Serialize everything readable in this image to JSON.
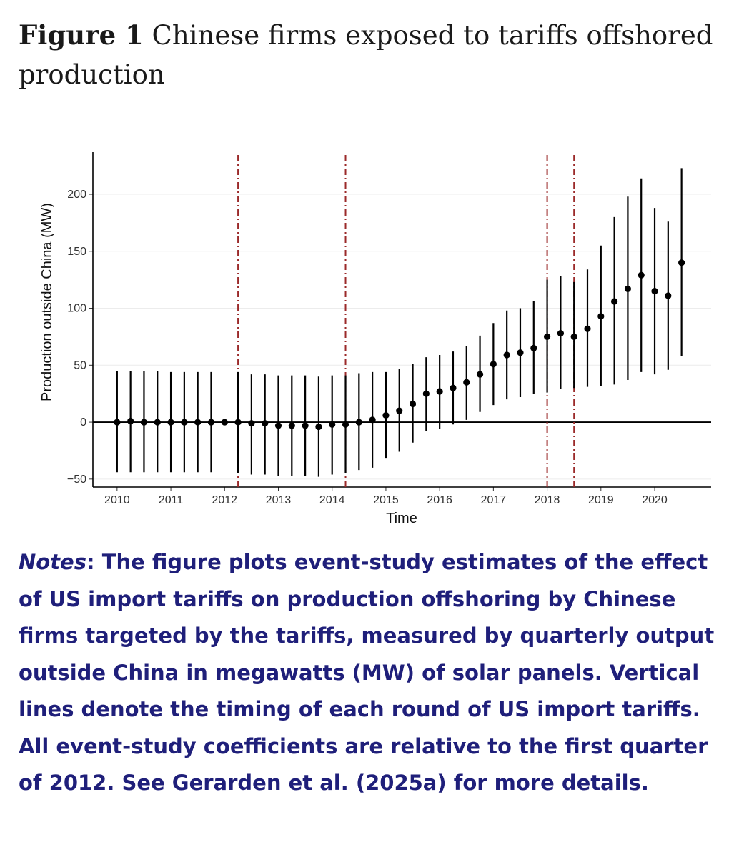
{
  "title": {
    "figure_label": "Figure 1",
    "text": "Chinese firms exposed to tariffs offshored production"
  },
  "notes": {
    "label": "Notes",
    "text": ": The figure plots event-study estimates of the effect of US import tariffs on production offshoring by Chinese firms targeted by the tariffs, measured by quarterly output outside China in megawatts (MW) of solar panels. Vertical lines denote the timing of each round of US import tariffs. All event-study coefficients are relative to the first quarter of 2012. See Gerarden et al. (2025a) for more details."
  },
  "chart_data": {
    "type": "scatter",
    "title": "",
    "xlabel": "Time",
    "ylabel": "Production outside China (MW)",
    "xlim": [
      2009.55,
      2021.05
    ],
    "ylim": [
      -57,
      237
    ],
    "x_ticks": [
      2010,
      2011,
      2012,
      2013,
      2014,
      2015,
      2016,
      2017,
      2018,
      2019,
      2020
    ],
    "x_tick_labels": [
      "2010",
      "2011",
      "2012",
      "2013",
      "2014",
      "2015",
      "2016",
      "2017",
      "2018",
      "2019",
      "2020"
    ],
    "y_ticks": [
      -50,
      0,
      50,
      100,
      150,
      200
    ],
    "y_tick_labels": [
      "−50",
      "0",
      "50",
      "100",
      "150",
      "200"
    ],
    "reference_line_y": 0,
    "event_lines_x": [
      2012.25,
      2014.25,
      2018.0,
      2018.5
    ],
    "grid": true,
    "series": [
      {
        "name": "Event-study estimate with confidence interval",
        "points": [
          {
            "x": 2010.0,
            "y": 0,
            "lo": -44,
            "hi": 45
          },
          {
            "x": 2010.25,
            "y": 1,
            "lo": -44,
            "hi": 45
          },
          {
            "x": 2010.5,
            "y": 0,
            "lo": -44,
            "hi": 45
          },
          {
            "x": 2010.75,
            "y": 0,
            "lo": -44,
            "hi": 45
          },
          {
            "x": 2011.0,
            "y": 0,
            "lo": -44,
            "hi": 44
          },
          {
            "x": 2011.25,
            "y": 0,
            "lo": -44,
            "hi": 44
          },
          {
            "x": 2011.5,
            "y": 0,
            "lo": -44,
            "hi": 44
          },
          {
            "x": 2011.75,
            "y": 0,
            "lo": -44,
            "hi": 44
          },
          {
            "x": 2012.0,
            "y": 0,
            "lo": 0,
            "hi": 0
          },
          {
            "x": 2012.25,
            "y": 0,
            "lo": -45,
            "hi": 44
          },
          {
            "x": 2012.5,
            "y": -1,
            "lo": -46,
            "hi": 42
          },
          {
            "x": 2012.75,
            "y": -1,
            "lo": -46,
            "hi": 42
          },
          {
            "x": 2013.0,
            "y": -3,
            "lo": -47,
            "hi": 41
          },
          {
            "x": 2013.25,
            "y": -3,
            "lo": -47,
            "hi": 41
          },
          {
            "x": 2013.5,
            "y": -3,
            "lo": -47,
            "hi": 41
          },
          {
            "x": 2013.75,
            "y": -4,
            "lo": -48,
            "hi": 40
          },
          {
            "x": 2014.0,
            "y": -2,
            "lo": -46,
            "hi": 41
          },
          {
            "x": 2014.25,
            "y": -2,
            "lo": -45,
            "hi": 41
          },
          {
            "x": 2014.5,
            "y": 0,
            "lo": -42,
            "hi": 43
          },
          {
            "x": 2014.75,
            "y": 2,
            "lo": -40,
            "hi": 44
          },
          {
            "x": 2015.0,
            "y": 6,
            "lo": -32,
            "hi": 44
          },
          {
            "x": 2015.25,
            "y": 10,
            "lo": -26,
            "hi": 47
          },
          {
            "x": 2015.5,
            "y": 16,
            "lo": -18,
            "hi": 51
          },
          {
            "x": 2015.75,
            "y": 25,
            "lo": -8,
            "hi": 57
          },
          {
            "x": 2016.0,
            "y": 27,
            "lo": -6,
            "hi": 59
          },
          {
            "x": 2016.25,
            "y": 30,
            "lo": -2,
            "hi": 62
          },
          {
            "x": 2016.5,
            "y": 35,
            "lo": 2,
            "hi": 67
          },
          {
            "x": 2016.75,
            "y": 42,
            "lo": 9,
            "hi": 76
          },
          {
            "x": 2017.0,
            "y": 51,
            "lo": 15,
            "hi": 87
          },
          {
            "x": 2017.25,
            "y": 59,
            "lo": 20,
            "hi": 98
          },
          {
            "x": 2017.5,
            "y": 61,
            "lo": 22,
            "hi": 100
          },
          {
            "x": 2017.75,
            "y": 65,
            "lo": 25,
            "hi": 106
          },
          {
            "x": 2018.0,
            "y": 75,
            "lo": 26,
            "hi": 125
          },
          {
            "x": 2018.25,
            "y": 78,
            "lo": 29,
            "hi": 128
          },
          {
            "x": 2018.5,
            "y": 75,
            "lo": 30,
            "hi": 123
          },
          {
            "x": 2018.75,
            "y": 82,
            "lo": 31,
            "hi": 134
          },
          {
            "x": 2019.0,
            "y": 93,
            "lo": 32,
            "hi": 155
          },
          {
            "x": 2019.25,
            "y": 106,
            "lo": 33,
            "hi": 180
          },
          {
            "x": 2019.5,
            "y": 117,
            "lo": 37,
            "hi": 198
          },
          {
            "x": 2019.75,
            "y": 129,
            "lo": 44,
            "hi": 214
          },
          {
            "x": 2020.0,
            "y": 115,
            "lo": 42,
            "hi": 188
          },
          {
            "x": 2020.25,
            "y": 111,
            "lo": 46,
            "hi": 176
          },
          {
            "x": 2020.5,
            "y": 140,
            "lo": 58,
            "hi": 223
          }
        ]
      }
    ],
    "colors": {
      "points": "#000000",
      "event_lines": "#9b2a2a",
      "grid": "#ececec",
      "axis": "#000000"
    }
  }
}
